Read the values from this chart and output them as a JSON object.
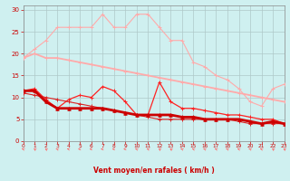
{
  "x": [
    0,
    1,
    2,
    3,
    4,
    5,
    6,
    7,
    8,
    9,
    10,
    11,
    12,
    13,
    14,
    15,
    16,
    17,
    18,
    19,
    20,
    21,
    22,
    23
  ],
  "line1": [
    19,
    21,
    23,
    26,
    26,
    26,
    26,
    29,
    26,
    26,
    29,
    29,
    26,
    23,
    23,
    18,
    17,
    15,
    14,
    12,
    9,
    8,
    12,
    13
  ],
  "line2": [
    19,
    20,
    19,
    19,
    18.5,
    18,
    17.5,
    17,
    16.5,
    16,
    15.5,
    15,
    14.5,
    14,
    13.5,
    13,
    12.5,
    12,
    11.5,
    11,
    10.5,
    10,
    9.5,
    9
  ],
  "line3": [
    11.5,
    12,
    9.5,
    7.5,
    9.5,
    10.5,
    10,
    12.5,
    11.5,
    9,
    6,
    6,
    13.5,
    9,
    7.5,
    7.5,
    7,
    6.5,
    6,
    6,
    5.5,
    5,
    5,
    4
  ],
  "line4": [
    11.5,
    11.5,
    9,
    7.5,
    7.5,
    7.5,
    7.5,
    7.5,
    7,
    6.5,
    6,
    6,
    6,
    6,
    5.5,
    5.5,
    5,
    5,
    5,
    5,
    4.5,
    4,
    4.5,
    4
  ],
  "line5": [
    11,
    10.5,
    10,
    9.5,
    9,
    8.5,
    8,
    7.5,
    7,
    6.5,
    6,
    5.5,
    5,
    5,
    5,
    5,
    5,
    5,
    5,
    4.5,
    4,
    4,
    4,
    4
  ],
  "bg_color": "#cff0f0",
  "grid_color": "#aec8c8",
  "xlabel": "Vent moyen/en rafales ( km/h )",
  "ylim": [
    0,
    31
  ],
  "xlim": [
    0,
    23
  ],
  "arrow_angles_deg": [
    225,
    210,
    210,
    225,
    240,
    270,
    270,
    270,
    270,
    270,
    225,
    225,
    210,
    210,
    225,
    225,
    225,
    225,
    225,
    225,
    225,
    225,
    210,
    210
  ]
}
